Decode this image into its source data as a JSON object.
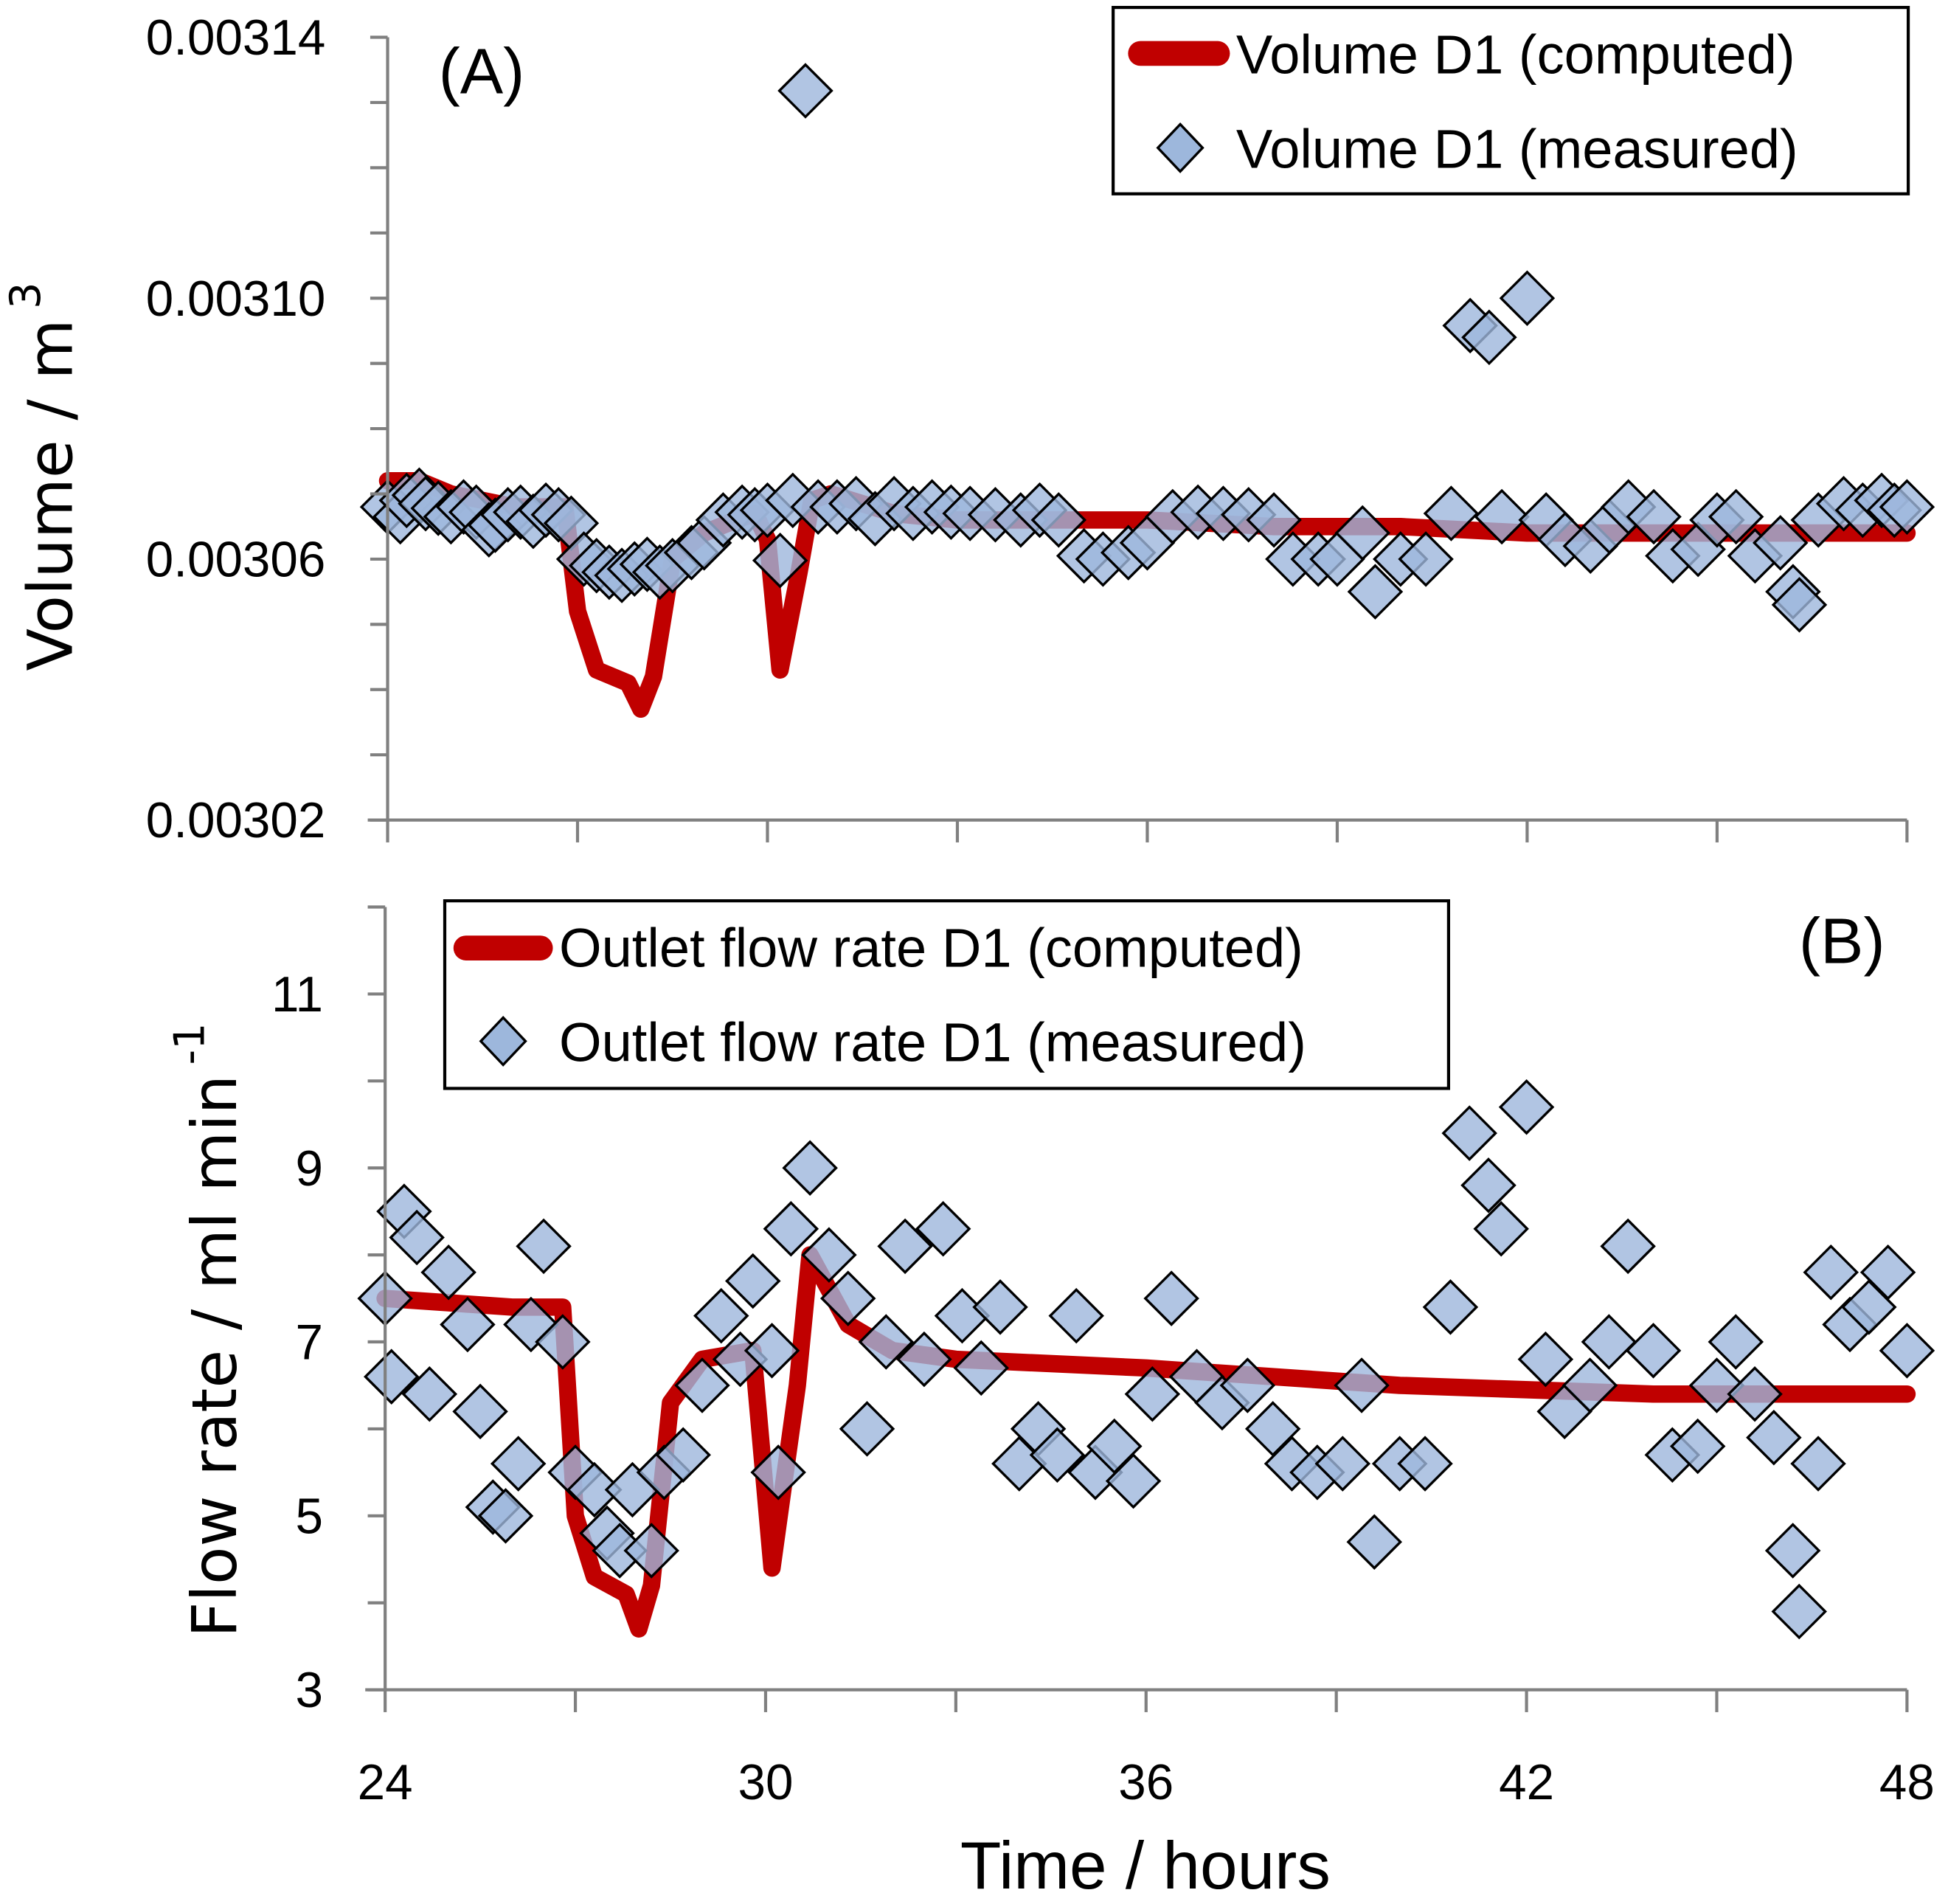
{
  "colors": {
    "computed": "#c00000",
    "measured_fill": "#9db7dc",
    "measured_stroke": "#000000",
    "axis": "#808080"
  },
  "chart_data": [
    {
      "type": "line+scatter",
      "panel_label": "(A)",
      "xlabel": "Time / hours",
      "ylabel": "Volume / m",
      "ylabel_sup": "3",
      "xlim": [
        24,
        48
      ],
      "ylim": [
        0.00302,
        0.00314
      ],
      "x_ticks": [
        "24",
        "30",
        "36",
        "42",
        "48"
      ],
      "y_ticks": [
        "0.00302",
        "0.00306",
        "0.00310",
        "0.00314"
      ],
      "y_tick_values": [
        0.00302,
        0.00306,
        0.0031,
        0.00314
      ],
      "legend": {
        "position": "top-right",
        "entries": [
          "Volume D1 (computed)",
          "Volume D1 (measured)"
        ]
      },
      "series": [
        {
          "name": "Volume D1 (computed)",
          "kind": "line",
          "points": [
            [
              24,
              0.003072
            ],
            [
              24.5,
              0.003072
            ],
            [
              25,
              0.00307
            ],
            [
              25.5,
              0.003069
            ],
            [
              26,
              0.003068
            ],
            [
              26.8,
              0.003068
            ],
            [
              27,
              0.003052
            ],
            [
              27.3,
              0.003043
            ],
            [
              27.8,
              0.003041
            ],
            [
              28,
              0.003037
            ],
            [
              28.2,
              0.003042
            ],
            [
              28.5,
              0.00306
            ],
            [
              29,
              0.003064
            ],
            [
              29.5,
              0.003066
            ],
            [
              29.8,
              0.003067
            ],
            [
              30,
              0.003063
            ],
            [
              30.2,
              0.003043
            ],
            [
              30.5,
              0.003058
            ],
            [
              30.7,
              0.003069
            ],
            [
              31,
              0.00307
            ],
            [
              32,
              0.003067
            ],
            [
              33,
              0.003066
            ],
            [
              36,
              0.003066
            ],
            [
              38,
              0.003065
            ],
            [
              40,
              0.003065
            ],
            [
              42,
              0.003064
            ],
            [
              44,
              0.003064
            ],
            [
              46,
              0.003064
            ],
            [
              48,
              0.003064
            ]
          ]
        },
        {
          "name": "Volume D1 (measured)",
          "kind": "scatter",
          "points": [
            [
              24.0,
              0.003068
            ],
            [
              24.2,
              0.0030665
            ],
            [
              24.3,
              0.003069
            ],
            [
              24.5,
              0.0030698
            ],
            [
              24.6,
              0.0030685
            ],
            [
              24.8,
              0.0030678
            ],
            [
              25.0,
              0.0030665
            ],
            [
              25.2,
              0.003068
            ],
            [
              25.4,
              0.0030672
            ],
            [
              25.6,
              0.0030645
            ],
            [
              25.7,
              0.0030652
            ],
            [
              25.9,
              0.0030668
            ],
            [
              26.1,
              0.0030672
            ],
            [
              26.3,
              0.0030658
            ],
            [
              26.5,
              0.0030675
            ],
            [
              26.7,
              0.0030668
            ],
            [
              26.9,
              0.0030655
            ],
            [
              27.1,
              0.00306
            ],
            [
              27.3,
              0.003059
            ],
            [
              27.5,
              0.003058
            ],
            [
              27.7,
              0.0030575
            ],
            [
              27.9,
              0.0030585
            ],
            [
              28.1,
              0.0030592
            ],
            [
              28.3,
              0.003058
            ],
            [
              28.5,
              0.003059
            ],
            [
              28.8,
              0.003061
            ],
            [
              29.0,
              0.0030625
            ],
            [
              29.3,
              0.003066
            ],
            [
              29.6,
              0.0030672
            ],
            [
              29.8,
              0.0030668
            ],
            [
              30.0,
              0.0030675
            ],
            [
              30.2,
              0.0030598
            ],
            [
              30.4,
              0.003069
            ],
            [
              30.6,
              0.0031318
            ],
            [
              30.8,
              0.003068
            ],
            [
              31.1,
              0.003068
            ],
            [
              31.4,
              0.0030685
            ],
            [
              31.7,
              0.0030662
            ],
            [
              32.0,
              0.0030685
            ],
            [
              32.3,
              0.003067
            ],
            [
              32.6,
              0.003068
            ],
            [
              32.9,
              0.0030672
            ],
            [
              33.2,
              0.003067
            ],
            [
              33.6,
              0.0030668
            ],
            [
              34.0,
              0.003066
            ],
            [
              34.3,
              0.0030675
            ],
            [
              34.6,
              0.003066
            ],
            [
              35.0,
              0.0030605
            ],
            [
              35.3,
              0.00306
            ],
            [
              35.7,
              0.003061
            ],
            [
              36.0,
              0.0030625
            ],
            [
              36.4,
              0.0030665
            ],
            [
              36.8,
              0.0030672
            ],
            [
              37.2,
              0.003067
            ],
            [
              37.6,
              0.0030668
            ],
            [
              38.0,
              0.003066
            ],
            [
              38.3,
              0.00306
            ],
            [
              38.7,
              0.00306
            ],
            [
              39.0,
              0.00306
            ],
            [
              39.4,
              0.003064
            ],
            [
              39.6,
              0.003055
            ],
            [
              40.0,
              0.00306
            ],
            [
              40.4,
              0.00306
            ],
            [
              40.8,
              0.003067
            ],
            [
              41.1,
              0.0030958
            ],
            [
              41.4,
              0.003094
            ],
            [
              41.6,
              0.0030665
            ],
            [
              42.0,
              0.0031
            ],
            [
              42.3,
              0.003066
            ],
            [
              42.6,
              0.003063
            ],
            [
              43.0,
              0.003062
            ],
            [
              43.3,
              0.003065
            ],
            [
              43.6,
              0.003068
            ],
            [
              44.0,
              0.0030665
            ],
            [
              44.3,
              0.0030605
            ],
            [
              44.7,
              0.0030615
            ],
            [
              45.0,
              0.003066
            ],
            [
              45.3,
              0.0030665
            ],
            [
              45.6,
              0.0030605
            ],
            [
              46.0,
              0.0030625
            ],
            [
              46.2,
              0.003055
            ],
            [
              46.3,
              0.003053
            ],
            [
              46.6,
              0.003066
            ],
            [
              47.0,
              0.0030685
            ],
            [
              47.3,
              0.0030675
            ],
            [
              47.6,
              0.003069
            ],
            [
              47.8,
              0.0030675
            ],
            [
              48.0,
              0.003068
            ]
          ]
        }
      ]
    },
    {
      "type": "line+scatter",
      "panel_label": "(B)",
      "xlabel": "Time / hours",
      "ylabel": "Flow rate / ml min",
      "ylabel_sup": "-1",
      "xlim": [
        24,
        48
      ],
      "ylim": [
        3,
        12
      ],
      "x_ticks": [
        "24",
        "30",
        "36",
        "42",
        "48"
      ],
      "y_ticks": [
        "3",
        "5",
        "7",
        "9",
        "11"
      ],
      "y_tick_values": [
        3,
        5,
        7,
        9,
        11
      ],
      "legend": {
        "position": "top-left",
        "entries": [
          "Outlet flow rate D1 (computed)",
          "Outlet flow rate D1 (measured)"
        ]
      },
      "series": [
        {
          "name": "Outlet flow rate D1 (computed)",
          "kind": "line",
          "points": [
            [
              24,
              7.5
            ],
            [
              25,
              7.45
            ],
            [
              26,
              7.4
            ],
            [
              26.8,
              7.4
            ],
            [
              27,
              5.0
            ],
            [
              27.3,
              4.3
            ],
            [
              27.8,
              4.1
            ],
            [
              28,
              3.7
            ],
            [
              28.2,
              4.2
            ],
            [
              28.5,
              6.3
            ],
            [
              29,
              6.8
            ],
            [
              29.8,
              6.9
            ],
            [
              30.1,
              4.4
            ],
            [
              30.5,
              6.5
            ],
            [
              30.7,
              8.0
            ],
            [
              31.3,
              7.2
            ],
            [
              32,
              6.9
            ],
            [
              33,
              6.8
            ],
            [
              36,
              6.7
            ],
            [
              40,
              6.5
            ],
            [
              44,
              6.4
            ],
            [
              48,
              6.4
            ]
          ]
        },
        {
          "name": "Outlet flow rate D1 (measured)",
          "kind": "scatter",
          "points": [
            [
              24.0,
              7.5
            ],
            [
              24.1,
              6.6
            ],
            [
              24.3,
              8.5
            ],
            [
              24.5,
              8.2
            ],
            [
              24.7,
              6.4
            ],
            [
              25.0,
              7.8
            ],
            [
              25.3,
              7.2
            ],
            [
              25.5,
              6.2
            ],
            [
              25.7,
              5.1
            ],
            [
              25.9,
              5.0
            ],
            [
              26.1,
              5.6
            ],
            [
              26.3,
              7.2
            ],
            [
              26.5,
              8.1
            ],
            [
              26.8,
              7.0
            ],
            [
              27.0,
              5.5
            ],
            [
              27.3,
              5.3
            ],
            [
              27.5,
              4.8
            ],
            [
              27.7,
              4.6
            ],
            [
              27.9,
              5.3
            ],
            [
              28.2,
              4.6
            ],
            [
              28.4,
              5.5
            ],
            [
              28.7,
              5.7
            ],
            [
              29.0,
              6.5
            ],
            [
              29.3,
              7.3
            ],
            [
              29.6,
              6.8
            ],
            [
              29.8,
              7.7
            ],
            [
              30.1,
              6.9
            ],
            [
              30.2,
              5.5
            ],
            [
              30.4,
              8.3
            ],
            [
              30.7,
              9.0
            ],
            [
              31.0,
              8.0
            ],
            [
              31.3,
              7.5
            ],
            [
              31.6,
              6.0
            ],
            [
              31.9,
              7.0
            ],
            [
              32.2,
              8.1
            ],
            [
              32.5,
              6.8
            ],
            [
              32.8,
              8.3
            ],
            [
              33.1,
              7.3
            ],
            [
              33.4,
              6.7
            ],
            [
              33.7,
              7.4
            ],
            [
              34.0,
              5.6
            ],
            [
              34.3,
              6.0
            ],
            [
              34.6,
              5.7
            ],
            [
              34.9,
              7.3
            ],
            [
              35.2,
              5.5
            ],
            [
              35.5,
              5.8
            ],
            [
              35.8,
              5.4
            ],
            [
              36.1,
              6.4
            ],
            [
              36.4,
              7.5
            ],
            [
              36.8,
              6.6
            ],
            [
              37.2,
              6.3
            ],
            [
              37.6,
              6.5
            ],
            [
              38.0,
              6.0
            ],
            [
              38.3,
              5.6
            ],
            [
              38.7,
              5.5
            ],
            [
              39.1,
              5.6
            ],
            [
              39.4,
              6.5
            ],
            [
              39.6,
              4.7
            ],
            [
              40.0,
              5.6
            ],
            [
              40.4,
              5.6
            ],
            [
              40.8,
              7.4
            ],
            [
              41.1,
              9.4
            ],
            [
              41.4,
              8.8
            ],
            [
              41.6,
              8.3
            ],
            [
              42.0,
              9.7
            ],
            [
              42.3,
              6.8
            ],
            [
              42.6,
              6.2
            ],
            [
              43.0,
              6.5
            ],
            [
              43.3,
              7.0
            ],
            [
              43.6,
              8.1
            ],
            [
              44.0,
              6.9
            ],
            [
              44.3,
              5.7
            ],
            [
              44.7,
              5.8
            ],
            [
              45.0,
              6.5
            ],
            [
              45.3,
              7.0
            ],
            [
              45.6,
              6.4
            ],
            [
              45.9,
              5.9
            ],
            [
              46.2,
              4.6
            ],
            [
              46.3,
              3.9
            ],
            [
              46.6,
              5.6
            ],
            [
              46.8,
              7.8
            ],
            [
              47.1,
              7.2
            ],
            [
              47.4,
              7.4
            ],
            [
              47.7,
              7.8
            ],
            [
              48.0,
              6.9
            ]
          ]
        }
      ]
    }
  ]
}
